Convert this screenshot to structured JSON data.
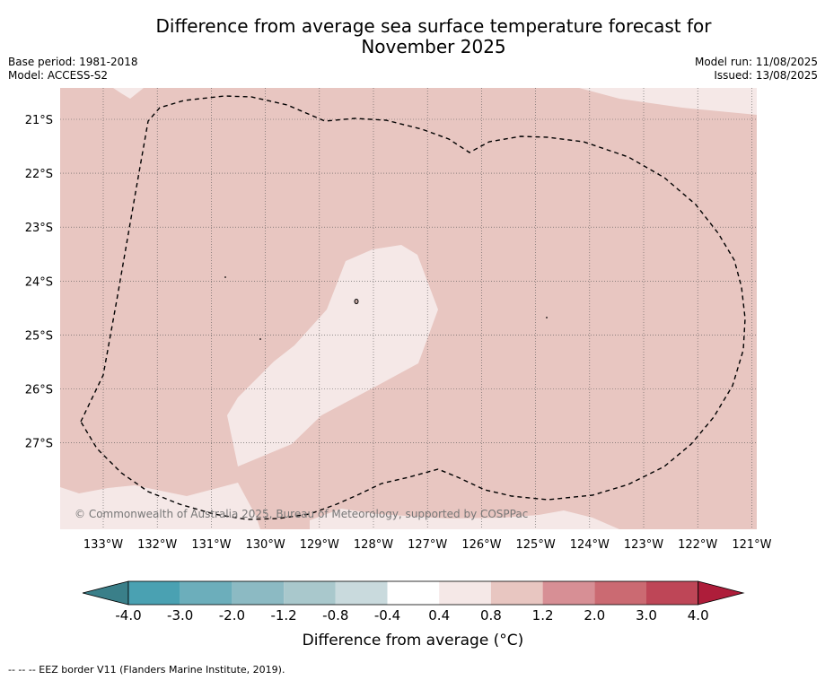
{
  "title_line1": "Difference from average sea surface temperature forecast for",
  "title_line2": "November 2025",
  "base_period": "Base period: 1981-2018",
  "model": "Model: ACCESS-S2",
  "model_run": "Model run: 11/08/2025",
  "issued": "Issued: 13/08/2025",
  "copyright": "© Commonwealth of Australia 2025, Bureau of Meteorology, supported by COSPPac",
  "footer": "--  --  -- EEZ border V11 (Flanders Marine Institute, 2019).",
  "lon_labels": [
    "133°W",
    "132°W",
    "131°W",
    "130°W",
    "129°W",
    "128°W",
    "127°W",
    "126°W",
    "125°W",
    "124°W",
    "123°W",
    "122°W",
    "121°W"
  ],
  "lat_labels": [
    "21°S",
    "22°S",
    "23°S",
    "24°S",
    "25°S",
    "26°S",
    "27°S"
  ],
  "colorbar": {
    "title": "Difference from average (°C)",
    "tick_labels": [
      "-4.0",
      "-3.0",
      "-2.0",
      "-1.2",
      "-0.8",
      "-0.4",
      "0.4",
      "0.8",
      "1.2",
      "2.0",
      "3.0",
      "4.0"
    ],
    "colors": [
      "#4aa1b2",
      "#6caebb",
      "#8cbac3",
      "#a9c8cc",
      "#c9dadd",
      "#ffffff",
      "#f5e8e7",
      "#e8c6c1",
      "#d78f95",
      "#cb6a72",
      "#be4657"
    ],
    "under_color": "#3a7f89",
    "over_color": "#ae1d3a"
  },
  "map_colors": {
    "anomaly_0_8_1_2": "#e8c6c1",
    "anomaly_0_4_0_8": "#f5e8e7"
  }
}
